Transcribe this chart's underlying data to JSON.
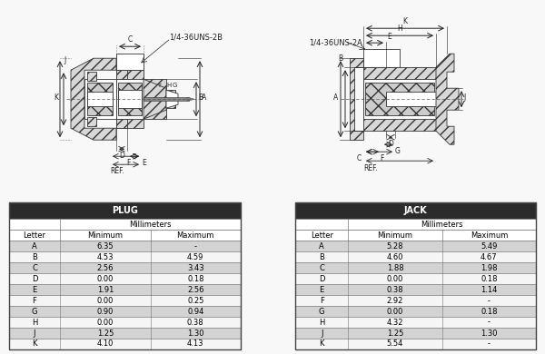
{
  "plug_title": "PLUG",
  "jack_title": "JACK",
  "mm_label": "Millimeters",
  "col_letter": "Letter",
  "col_min": "Minimum",
  "col_max": "Maximum",
  "plug_rows": [
    [
      "A",
      "6.35",
      "-"
    ],
    [
      "B",
      "4.53",
      "4.59"
    ],
    [
      "C",
      "2.56",
      "3.43"
    ],
    [
      "D",
      "0.00",
      "0.18"
    ],
    [
      "E",
      "1.91",
      "2.56"
    ],
    [
      "F",
      "0.00",
      "0.25"
    ],
    [
      "G",
      "0.90",
      "0.94"
    ],
    [
      "H",
      "0.00",
      "0.38"
    ],
    [
      "J",
      "1.25",
      "1.30"
    ],
    [
      "K",
      "4.10",
      "4.13"
    ]
  ],
  "jack_rows": [
    [
      "A",
      "5.28",
      "5.49"
    ],
    [
      "B",
      "4.60",
      "4.67"
    ],
    [
      "C",
      "1.88",
      "1.98"
    ],
    [
      "D",
      "0.00",
      "0.18"
    ],
    [
      "E",
      "0.38",
      "1.14"
    ],
    [
      "F",
      "2.92",
      "-"
    ],
    [
      "G",
      "0.00",
      "0.18"
    ],
    [
      "H",
      "4.32",
      "-"
    ],
    [
      "J",
      "1.25",
      "1.30"
    ],
    [
      "K",
      "5.54",
      "-"
    ]
  ],
  "header_bg": "#2b2b2b",
  "header_fg": "#ffffff",
  "row_gray_bg": "#d3d3d3",
  "row_white_bg": "#f5f5f5",
  "table_border": "#777777",
  "bg_color": "#f8f8f8",
  "plug_text_2b": "1/4-36UNS-2B",
  "jack_text_2a": "1/4-36UNS-2A",
  "ref_label": "REF.",
  "dark": "#333333",
  "hatch_color": "#888888"
}
